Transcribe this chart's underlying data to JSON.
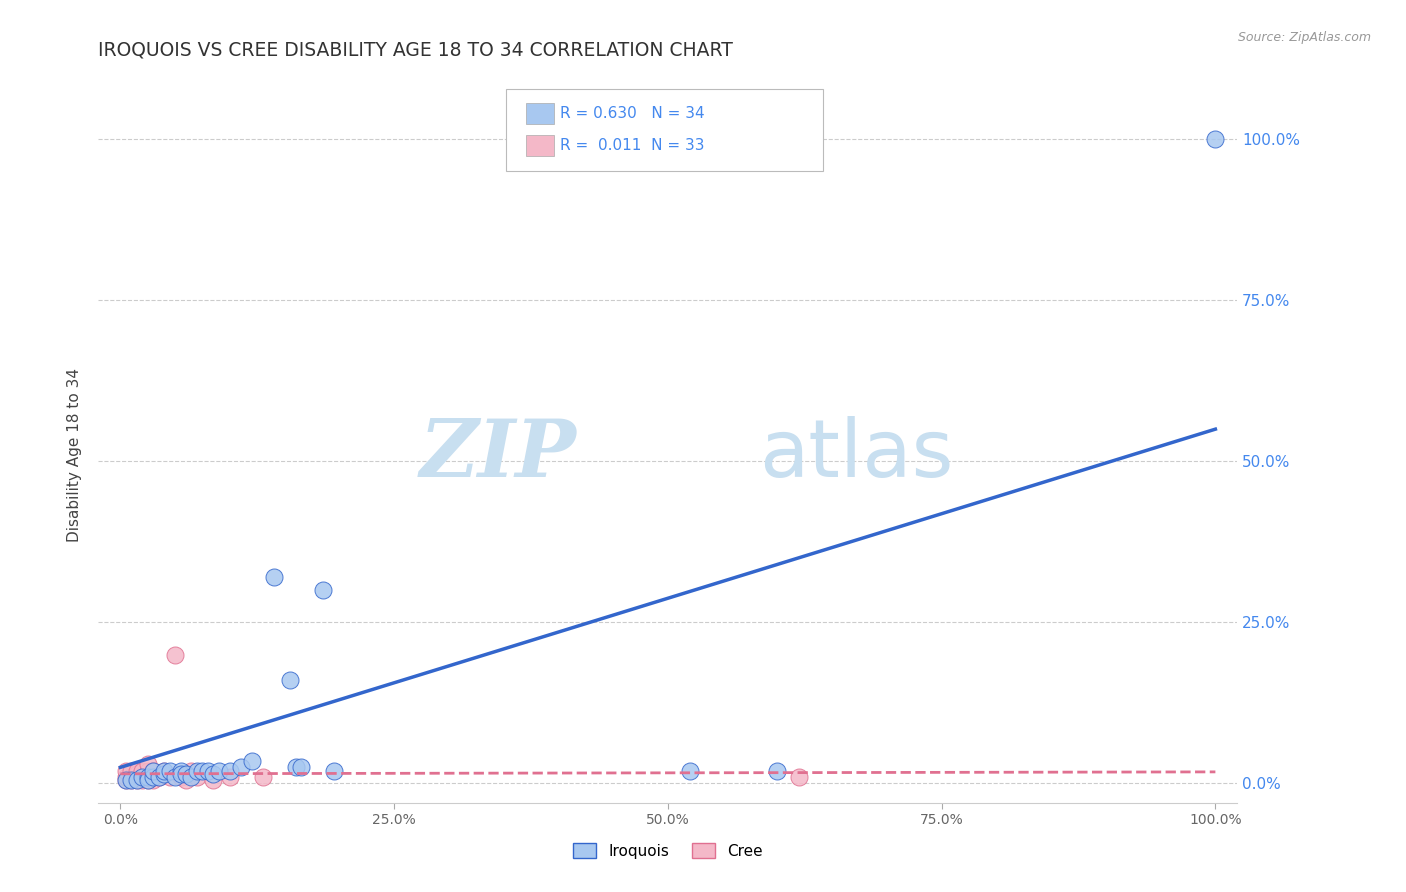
{
  "title": "IROQUOIS VS CREE DISABILITY AGE 18 TO 34 CORRELATION CHART",
  "source": "Source: ZipAtlas.com",
  "ylabel": "Disability Age 18 to 34",
  "legend_label1": "Iroquois",
  "legend_label2": "Cree",
  "legend_r1": "R = 0.630",
  "legend_n1": "N = 34",
  "legend_r2": "R =  0.011",
  "legend_n2": "N = 33",
  "color_iroquois": "#a8c8f0",
  "color_cree": "#f4b8c8",
  "color_iroquois_line": "#3366cc",
  "color_cree_line": "#e07090",
  "color_legend_r": "#4488ee",
  "color_right_axis": "#4488ee",
  "watermark_zip": "ZIP",
  "watermark_atlas": "atlas",
  "watermark_color": "#c8dff0",
  "background_color": "#ffffff",
  "iroquois_x": [
    0.005,
    0.01,
    0.015,
    0.02,
    0.025,
    0.025,
    0.03,
    0.03,
    0.035,
    0.04,
    0.04,
    0.045,
    0.05,
    0.055,
    0.055,
    0.06,
    0.065,
    0.07,
    0.075,
    0.08,
    0.085,
    0.09,
    0.1,
    0.11,
    0.12,
    0.14,
    0.155,
    0.16,
    0.165,
    0.185,
    0.195,
    0.52,
    0.6,
    1.0
  ],
  "iroquois_y": [
    0.005,
    0.005,
    0.005,
    0.01,
    0.01,
    0.005,
    0.01,
    0.02,
    0.01,
    0.015,
    0.02,
    0.02,
    0.01,
    0.02,
    0.015,
    0.015,
    0.01,
    0.02,
    0.02,
    0.02,
    0.015,
    0.02,
    0.02,
    0.025,
    0.035,
    0.32,
    0.16,
    0.025,
    0.025,
    0.3,
    0.02,
    0.02,
    0.02,
    1.0
  ],
  "cree_x": [
    0.005,
    0.005,
    0.005,
    0.01,
    0.01,
    0.01,
    0.015,
    0.015,
    0.015,
    0.015,
    0.02,
    0.02,
    0.02,
    0.025,
    0.025,
    0.025,
    0.025,
    0.03,
    0.03,
    0.03,
    0.035,
    0.04,
    0.04,
    0.045,
    0.05,
    0.055,
    0.06,
    0.065,
    0.07,
    0.085,
    0.1,
    0.13,
    0.62
  ],
  "cree_y": [
    0.005,
    0.01,
    0.02,
    0.005,
    0.01,
    0.02,
    0.005,
    0.01,
    0.015,
    0.02,
    0.005,
    0.01,
    0.02,
    0.005,
    0.01,
    0.02,
    0.03,
    0.005,
    0.01,
    0.02,
    0.01,
    0.015,
    0.02,
    0.01,
    0.2,
    0.01,
    0.005,
    0.02,
    0.01,
    0.005,
    0.01,
    0.01,
    0.01
  ],
  "iroquois_line_x0": 0.0,
  "iroquois_line_y0": 0.025,
  "iroquois_line_x1": 1.0,
  "iroquois_line_y1": 0.55,
  "cree_line_x0": 0.0,
  "cree_line_y0": 0.015,
  "cree_line_x1": 1.0,
  "cree_line_y1": 0.018,
  "xlim": [
    0.0,
    1.0
  ],
  "ylim": [
    0.0,
    1.0
  ],
  "grid_ticks": [
    0.0,
    0.25,
    0.5,
    0.75,
    1.0
  ]
}
